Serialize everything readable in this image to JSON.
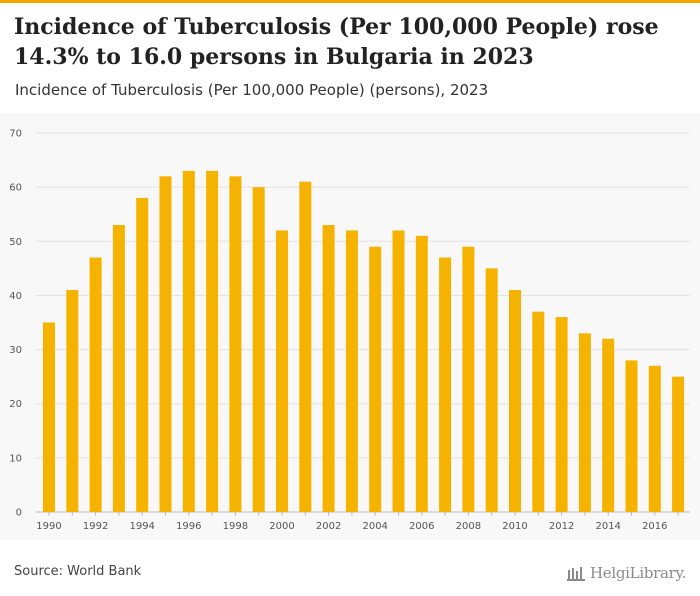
{
  "header": {
    "title": "Incidence of Tuberculosis (Per 100,000 People) rose 14.3% to 16.0 persons in Bulgaria in 2023",
    "subtitle": "Incidence of Tuberculosis (Per 100,000 People) (persons), 2023"
  },
  "footer": {
    "source": "Source: World Bank",
    "brand": "HelgiLibrary."
  },
  "colors": {
    "bar": "#f5b300",
    "accent": "#f5a500",
    "grid": "#e2e2e2"
  },
  "chart_data": {
    "type": "bar",
    "title": "",
    "xlabel": "",
    "ylabel": "",
    "ylim": [
      0,
      70
    ],
    "yticks": [
      0,
      10,
      20,
      30,
      40,
      50,
      60,
      70
    ],
    "xtick_labels": [
      "1990",
      "1992",
      "1994",
      "1996",
      "1998",
      "2000",
      "2002",
      "2004",
      "2006",
      "2008",
      "2010",
      "2012",
      "2014",
      "2016"
    ],
    "grid": true,
    "categories": [
      "1990",
      "1991",
      "1992",
      "1993",
      "1994",
      "1995",
      "1996",
      "1997",
      "1998",
      "1999",
      "2000",
      "2001",
      "2002",
      "2003",
      "2004",
      "2005",
      "2006",
      "2007",
      "2008",
      "2009",
      "2010",
      "2011",
      "2012",
      "2013",
      "2014",
      "2015",
      "2016",
      "2017"
    ],
    "values": [
      35,
      41,
      47,
      53,
      58,
      62,
      63,
      63,
      62,
      60,
      52,
      61,
      53,
      52,
      49,
      52,
      51,
      47,
      49,
      45,
      41,
      37,
      36,
      33,
      32,
      28,
      27,
      25
    ]
  }
}
